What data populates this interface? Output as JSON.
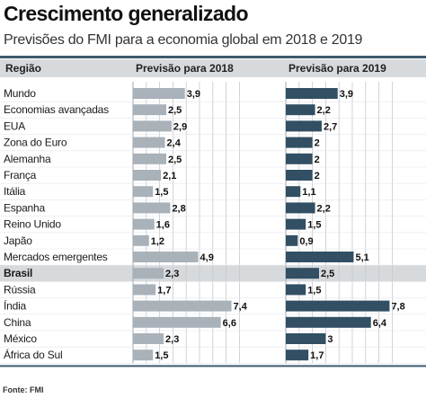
{
  "title": "Crescimento generalizado",
  "subtitle": "Previsões do FMI para a economia global em 2018 e 2019",
  "source": "Fonte: FMI",
  "colors": {
    "bar_2018": "#a9b1b9",
    "bar_2019": "#324f63",
    "header_bg": "#d6dadd",
    "highlight_row": "#d6dadd",
    "rule": "#3d5a6e"
  },
  "chart_data": {
    "type": "bar",
    "orientation": "horizontal",
    "row_header": "Região",
    "categories": [
      "Mundo",
      "Economias avançadas",
      "EUA",
      "Zona do Euro",
      "Alemanha",
      "França",
      "Itália",
      "Espanha",
      "Reino Unido",
      "Japão",
      "Mercados emergentes",
      "Brasil",
      "Rússia",
      "Índia",
      "China",
      "México",
      "África do Sul"
    ],
    "highlighted_category": "Brasil",
    "series": [
      {
        "name": "Previsão para 2018",
        "values": [
          3.9,
          2.5,
          2.9,
          2.4,
          2.5,
          2.1,
          1.5,
          2.8,
          1.6,
          1.2,
          4.9,
          2.3,
          1.7,
          7.4,
          6.6,
          2.3,
          1.5
        ],
        "labels": [
          "3,9",
          "2,5",
          "2,9",
          "2,4",
          "2,5",
          "2,1",
          "1,5",
          "2,8",
          "1,6",
          "1,2",
          "4,9",
          "2,3",
          "1,7",
          "7,4",
          "6,6",
          "2,3",
          "1,5"
        ]
      },
      {
        "name": "Previsão para 2019",
        "values": [
          3.9,
          2.2,
          2.7,
          2.0,
          2.0,
          2.0,
          1.1,
          2.2,
          1.5,
          0.9,
          5.1,
          2.5,
          1.5,
          7.8,
          6.4,
          3.0,
          1.7
        ],
        "labels": [
          "3,9",
          "2,2",
          "2,7",
          "2",
          "2",
          "2",
          "1,1",
          "2,2",
          "1,5",
          "0,9",
          "5,1",
          "2,5",
          "1,5",
          "7,8",
          "6,4",
          "3",
          "1,7"
        ]
      }
    ],
    "grid": true
  }
}
